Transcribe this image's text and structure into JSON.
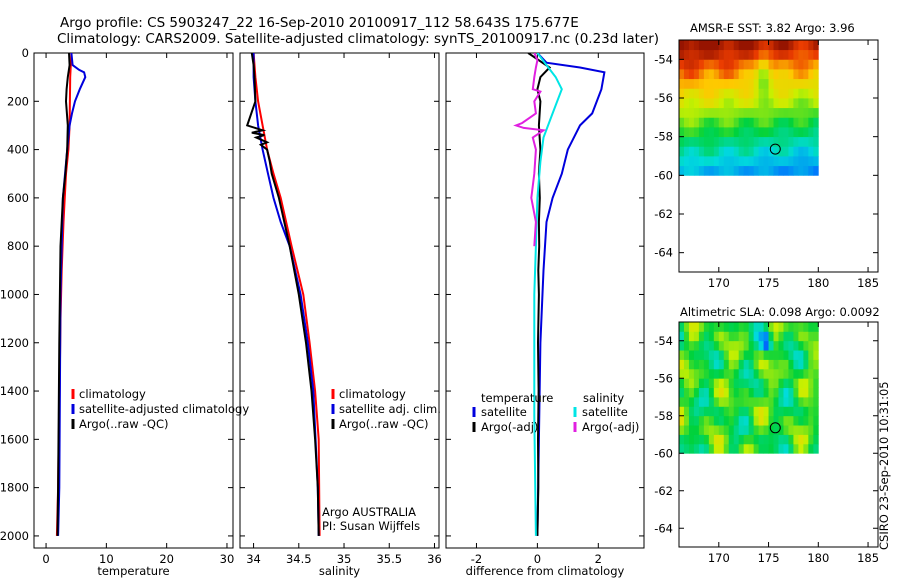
{
  "header": {
    "line1": "Argo profile: CS 5903247_22 16-Sep-2010 20100917_112 58.643S 175.677E",
    "line2": "Climatology: CARS2009. Satellite-adjusted climatology: synTS_20100917.nc (0.23d later)"
  },
  "credit": "CSIRO 23-Sep-2010 10:31:05",
  "chart_data": [
    {
      "type": "line",
      "id": "temperature",
      "xlabel": "temperature",
      "xlim": [
        -2,
        31
      ],
      "ylim": [
        0,
        2050
      ],
      "y_reversed": true,
      "xticks": [
        0,
        10,
        20,
        30
      ],
      "yticks": [
        0,
        200,
        400,
        600,
        800,
        1000,
        1200,
        1400,
        1600,
        1800,
        2000
      ],
      "legend": [
        "climatology",
        "satellite-adjusted climatology",
        "Argo(..raw -QC)"
      ],
      "series": [
        {
          "name": "climatology",
          "color": "#ff0000",
          "x": [
            4.2,
            4.0,
            3.9,
            3.7,
            3.3,
            2.9,
            2.6,
            2.4,
            2.3,
            2.2,
            2.1,
            2.0,
            1.9,
            1.8
          ],
          "y": [
            0,
            100,
            300,
            400,
            500,
            700,
            900,
            1100,
            1300,
            1500,
            1600,
            1800,
            1900,
            2000
          ]
        },
        {
          "name": "satellite-adjusted climatology",
          "color": "#0000dd",
          "x": [
            4.2,
            4.4,
            5.5,
            6.3,
            6.5,
            5.6,
            4.8,
            4.3,
            3.9,
            3.5,
            2.8,
            2.6,
            2.4,
            2.3,
            2.2,
            2.0
          ],
          "y": [
            0,
            50,
            70,
            80,
            100,
            150,
            200,
            250,
            300,
            400,
            600,
            800,
            1000,
            1400,
            1800,
            2000
          ]
        },
        {
          "name": "Argo(..raw -QC)",
          "color": "#000000",
          "x": [
            3.8,
            3.9,
            3.6,
            3.4,
            3.3,
            3.6,
            3.5,
            3.2,
            2.8,
            2.6,
            2.4,
            2.3,
            2.2,
            2.1,
            2.0,
            1.9
          ],
          "y": [
            0,
            50,
            100,
            150,
            200,
            300,
            400,
            500,
            600,
            700,
            800,
            1000,
            1200,
            1500,
            1800,
            2000
          ]
        }
      ]
    },
    {
      "type": "line",
      "id": "salinity",
      "xlabel": "salinity",
      "xlim": [
        33.85,
        36.05
      ],
      "ylim": [
        0,
        2050
      ],
      "y_reversed": true,
      "xticks": [
        34,
        34.5,
        35,
        35.5,
        36
      ],
      "xticklabels": [
        "34",
        "34.5",
        "35",
        "35.5",
        "36"
      ],
      "legend": [
        "climatology",
        "satellite adj. clim.",
        "Argo(..raw -QC)"
      ],
      "annotation": [
        "Argo AUSTRALIA",
        "PI: Susan Wijffels"
      ],
      "series": [
        {
          "name": "climatology",
          "color": "#ff0000",
          "x": [
            34.0,
            34.02,
            34.05,
            34.1,
            34.15,
            34.22,
            34.3,
            34.42,
            34.55,
            34.62,
            34.68,
            34.72,
            34.73
          ],
          "y": [
            0,
            100,
            200,
            300,
            400,
            500,
            600,
            800,
            1000,
            1200,
            1400,
            1600,
            2000
          ]
        },
        {
          "name": "satellite adj. clim.",
          "color": "#0000dd",
          "x": [
            34.0,
            34.0,
            34.02,
            34.05,
            34.1,
            34.16,
            34.22,
            34.3,
            34.4,
            34.52,
            34.6,
            34.66,
            34.71,
            34.72
          ],
          "y": [
            0,
            100,
            200,
            300,
            400,
            500,
            600,
            700,
            800,
            1000,
            1200,
            1400,
            1800,
            2000
          ]
        },
        {
          "name": "Argo(..raw -QC)",
          "color": "#000000",
          "x": [
            33.98,
            34.0,
            34.01,
            34.02,
            33.93,
            34.1,
            33.98,
            34.12,
            34.03,
            34.15,
            34.08,
            34.15,
            34.18,
            34.2,
            34.28,
            34.4,
            34.5,
            34.58,
            34.64,
            34.68,
            34.71,
            34.72
          ],
          "y": [
            0,
            50,
            100,
            200,
            300,
            320,
            330,
            340,
            350,
            370,
            380,
            400,
            450,
            500,
            600,
            800,
            1000,
            1200,
            1400,
            1600,
            1800,
            2000
          ]
        }
      ]
    },
    {
      "type": "line",
      "id": "difference",
      "xlabel": "difference from climatology",
      "xlim": [
        -3.0,
        3.5
      ],
      "ylim": [
        0,
        2050
      ],
      "y_reversed": true,
      "xticks": [
        -2,
        0,
        2
      ],
      "legend": [
        "temperature",
        "satellite",
        "Argo(-adj)",
        "salinity",
        "satellite",
        "Argo(-adj)"
      ],
      "series": [
        {
          "name": "temperature satellite",
          "color": "#0000dd",
          "x": [
            0.0,
            0.3,
            1.4,
            2.2,
            2.1,
            1.8,
            1.4,
            1.0,
            0.8,
            0.5,
            0.3,
            0.2,
            0.1,
            0.05,
            0.0
          ],
          "y": [
            0,
            40,
            60,
            80,
            150,
            250,
            300,
            400,
            500,
            600,
            700,
            900,
            1200,
            1600,
            2000
          ]
        },
        {
          "name": "temperature Argo(-adj)",
          "color": "#000000",
          "x": [
            -0.3,
            0.4,
            0.1,
            0.0,
            0.1,
            0.05,
            0.1,
            0.05,
            0.08,
            0.05,
            0.06,
            0.03,
            0.05,
            0.02,
            0.04,
            0.02,
            0.03,
            0.0
          ],
          "y": [
            0,
            60,
            100,
            150,
            200,
            300,
            400,
            500,
            600,
            700,
            800,
            900,
            1000,
            1200,
            1400,
            1600,
            1800,
            2000
          ]
        },
        {
          "name": "salinity satellite",
          "color": "#00e5e5",
          "x": [
            0.0,
            0.3,
            0.6,
            0.8,
            0.5,
            0.2,
            0.1,
            0.0,
            -0.05,
            -0.1,
            -0.1,
            -0.05
          ],
          "y": [
            0,
            50,
            100,
            150,
            250,
            350,
            450,
            600,
            800,
            1000,
            1500,
            2000
          ]
        },
        {
          "name": "salinity Argo(-adj)",
          "color": "#e020e0",
          "x": [
            -0.1,
            0.0,
            -0.05,
            -0.1,
            -0.15,
            0.1,
            -0.1,
            -0.05,
            -0.5,
            -0.7,
            -0.45,
            0.2,
            -0.15,
            -0.05,
            -0.1,
            -0.2,
            -0.05,
            -0.1
          ],
          "y": [
            0,
            30,
            60,
            100,
            150,
            160,
            200,
            250,
            290,
            300,
            310,
            320,
            350,
            400,
            500,
            600,
            700,
            800
          ]
        }
      ]
    },
    {
      "type": "heatmap",
      "id": "sst-map",
      "title": "AMSR-E SST: 3.82 Argo: 3.96",
      "xlim": [
        166,
        186
      ],
      "ylim": [
        -65,
        -53
      ],
      "xticks": [
        170,
        175,
        180,
        185
      ],
      "yticks": [
        -54,
        -56,
        -58,
        -60,
        -62,
        -64
      ],
      "data_extent": {
        "lon": [
          166,
          180
        ],
        "lat": [
          -60,
          -53
        ]
      },
      "marker": {
        "lon": 175.677,
        "lat": -58.643
      },
      "field": "sst"
    },
    {
      "type": "heatmap",
      "id": "sla-map",
      "title": "Altimetric SLA: 0.098 Argo: 0.0092",
      "xlim": [
        166,
        186
      ],
      "ylim": [
        -65,
        -53
      ],
      "xticks": [
        170,
        175,
        180,
        185
      ],
      "yticks": [
        -54,
        -56,
        -58,
        -60,
        -62,
        -64
      ],
      "data_extent": {
        "lon": [
          166,
          180
        ],
        "lat": [
          -60,
          -53
        ]
      },
      "marker": {
        "lon": 175.677,
        "lat": -58.643
      },
      "field": "sla"
    }
  ]
}
